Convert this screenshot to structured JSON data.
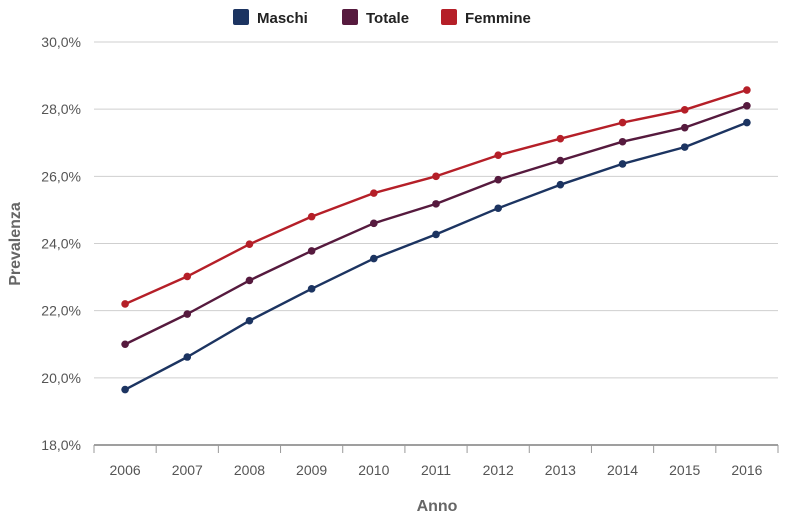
{
  "chart_data": {
    "type": "line",
    "xlabel": "Anno",
    "ylabel": "Prevalenza",
    "x": [
      "2006",
      "2007",
      "2008",
      "2009",
      "2010",
      "2011",
      "2012",
      "2013",
      "2014",
      "2015",
      "2016"
    ],
    "ylim": [
      18,
      30
    ],
    "yticks": [
      18,
      20,
      22,
      24,
      26,
      28,
      30
    ],
    "ytick_labels": [
      "18,0%",
      "20,0%",
      "22,0%",
      "24,0%",
      "26,0%",
      "28,0%",
      "30,0%"
    ],
    "grid": true,
    "legend_position": "top",
    "series": [
      {
        "name": "Maschi",
        "color": "#1c3461",
        "values": [
          19.65,
          20.62,
          21.7,
          22.65,
          23.55,
          24.27,
          25.05,
          25.75,
          26.37,
          26.87,
          27.6
        ]
      },
      {
        "name": "Totale",
        "color": "#561a3e",
        "values": [
          21.0,
          21.9,
          22.9,
          23.78,
          24.6,
          25.18,
          25.9,
          26.47,
          27.03,
          27.45,
          28.1
        ]
      },
      {
        "name": "Femmine",
        "color": "#b51f28",
        "values": [
          22.2,
          23.02,
          23.98,
          24.8,
          25.5,
          26.0,
          26.63,
          27.12,
          27.6,
          27.98,
          28.57
        ]
      }
    ]
  }
}
